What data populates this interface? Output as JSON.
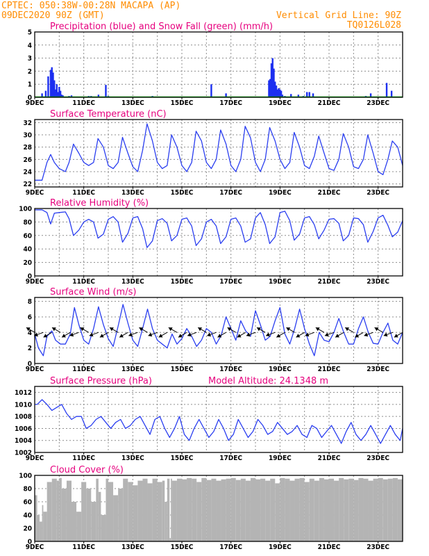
{
  "header": {
    "line1": "CPTEC:  050:38W-00:28N  MACAPA (AP)",
    "line2": "09DEC2020 90Z (GMT)",
    "grid_line": "Vertical Grid Line: 90Z",
    "code": "TQ0126L028"
  },
  "colors": {
    "header": "#ff8c00",
    "title": "#e6007e",
    "line": "#2a3ef0",
    "precip": "#1c2ff0",
    "snow": "#00b000",
    "cloud": "#b4b4b4",
    "grid": "#8c8c8c"
  },
  "chart_data": [
    {
      "type": "bar",
      "title": "Precipitation (blue) and Snow Fall (green) (mm/h)",
      "x_range_days": [
        9,
        24
      ],
      "x_tick_labels": [
        "9DEC",
        "11DEC",
        "13DEC",
        "15DEC",
        "17DEC",
        "19DEC",
        "21DEC",
        "23DEC"
      ],
      "ylim": [
        0,
        5
      ],
      "y_ticks": [
        0,
        1,
        2,
        3,
        4,
        5
      ],
      "series": [
        {
          "name": "Precipitation",
          "x": [
            9.3,
            9.45,
            9.55,
            9.65,
            9.7,
            9.75,
            9.8,
            9.85,
            9.9,
            9.95,
            10.0,
            10.05,
            10.1,
            10.15,
            10.4,
            10.5,
            11.2,
            11.3,
            11.6,
            11.9,
            12.0,
            12.8,
            13.8,
            16.2,
            16.8,
            18.55,
            18.6,
            18.65,
            18.7,
            18.75,
            18.8,
            18.85,
            18.9,
            18.95,
            19.0,
            19.05,
            19.1,
            19.2,
            19.45,
            19.75,
            19.95,
            20.1,
            20.2,
            20.35,
            22.5,
            22.7,
            23.35,
            23.55
          ],
          "values": [
            0.3,
            0.5,
            1.6,
            2.1,
            2.3,
            1.9,
            1.3,
            0.6,
            1.0,
            0.4,
            0.8,
            0.5,
            0.2,
            0.15,
            0.1,
            0.15,
            0.1,
            0.1,
            0.2,
            0.95,
            0.1,
            0.05,
            0.1,
            1.0,
            0.3,
            1.3,
            1.4,
            2.6,
            3.0,
            2.2,
            1.2,
            0.9,
            0.6,
            0.7,
            0.6,
            0.5,
            0.2,
            0.1,
            0.25,
            0.2,
            0.1,
            0.4,
            0.4,
            0.3,
            0.1,
            0.3,
            1.1,
            0.5
          ]
        },
        {
          "name": "Snow Fall",
          "x": [
            9.0,
            24.0
          ],
          "values": [
            0,
            0
          ]
        }
      ]
    },
    {
      "type": "line",
      "title": "Surface Temperature (nC)",
      "x_range_days": [
        9,
        24
      ],
      "x_tick_labels": [
        "9DEC",
        "11DEC",
        "13DEC",
        "15DEC",
        "17DEC",
        "19DEC",
        "21DEC",
        "23DEC"
      ],
      "ylim": [
        21.5,
        32.5
      ],
      "y_ticks": [
        22,
        24,
        26,
        28,
        30,
        32
      ],
      "x": [
        9.0,
        9.3,
        9.5,
        9.65,
        9.8,
        10.0,
        10.25,
        10.4,
        10.58,
        10.8,
        11.0,
        11.2,
        11.4,
        11.58,
        11.8,
        12.0,
        12.2,
        12.4,
        12.58,
        12.8,
        13.0,
        13.2,
        13.4,
        13.58,
        13.8,
        14.0,
        14.2,
        14.4,
        14.58,
        14.8,
        15.0,
        15.2,
        15.4,
        15.58,
        15.8,
        16.0,
        16.2,
        16.4,
        16.58,
        16.8,
        17.0,
        17.2,
        17.4,
        17.58,
        17.8,
        18.0,
        18.2,
        18.4,
        18.58,
        18.8,
        19.0,
        19.2,
        19.4,
        19.58,
        19.8,
        20.0,
        20.2,
        20.4,
        20.58,
        20.8,
        21.0,
        21.2,
        21.4,
        21.58,
        21.8,
        22.0,
        22.2,
        22.4,
        22.58,
        22.8,
        23.0,
        23.2,
        23.4,
        23.58,
        23.8,
        24.0
      ],
      "y": [
        22.6,
        22.6,
        25.5,
        26.8,
        25.5,
        24.5,
        24.0,
        25.5,
        28.5,
        27.0,
        25.5,
        25.0,
        25.5,
        29.4,
        28.0,
        25.0,
        24.5,
        25.5,
        29.6,
        27.0,
        24.8,
        24.0,
        27.5,
        31.8,
        29.0,
        25.5,
        24.5,
        25.0,
        30.0,
        28.0,
        25.0,
        24.0,
        25.5,
        30.6,
        29.0,
        25.5,
        24.5,
        26.0,
        30.8,
        28.5,
        25.0,
        24.0,
        26.0,
        31.4,
        29.5,
        25.5,
        24.0,
        26.0,
        31.2,
        29.0,
        26.0,
        24.5,
        25.5,
        30.4,
        28.0,
        25.0,
        24.5,
        26.5,
        29.8,
        27.0,
        24.5,
        24.2,
        26.0,
        30.2,
        28.0,
        24.8,
        24.5,
        26.0,
        30.0,
        27.0,
        24.0,
        23.5,
        26.0,
        29.0,
        28.0,
        25.0
      ]
    },
    {
      "type": "line",
      "title": "Relative Humidity (%)",
      "x_range_days": [
        9,
        24
      ],
      "x_tick_labels": [
        "9DEC",
        "11DEC",
        "13DEC",
        "15DEC",
        "17DEC",
        "19DEC",
        "21DEC",
        "23DEC"
      ],
      "ylim": [
        0,
        100
      ],
      "y_ticks": [
        0,
        20,
        40,
        60,
        80,
        100
      ],
      "x": [
        9.0,
        9.3,
        9.5,
        9.65,
        9.8,
        10.0,
        10.25,
        10.4,
        10.58,
        10.8,
        11.0,
        11.2,
        11.4,
        11.58,
        11.8,
        12.0,
        12.2,
        12.4,
        12.58,
        12.8,
        13.0,
        13.2,
        13.4,
        13.58,
        13.8,
        14.0,
        14.2,
        14.4,
        14.58,
        14.8,
        15.0,
        15.2,
        15.4,
        15.58,
        15.8,
        16.0,
        16.2,
        16.4,
        16.58,
        16.8,
        17.0,
        17.2,
        17.4,
        17.58,
        17.8,
        18.0,
        18.2,
        18.4,
        18.58,
        18.8,
        19.0,
        19.2,
        19.4,
        19.58,
        19.8,
        20.0,
        20.2,
        20.4,
        20.58,
        20.8,
        21.0,
        21.2,
        21.4,
        21.58,
        21.8,
        22.0,
        22.2,
        22.4,
        22.58,
        22.8,
        23.0,
        23.2,
        23.4,
        23.58,
        23.8,
        24.0
      ],
      "y": [
        98,
        98,
        94,
        77,
        93,
        94,
        95,
        85,
        60,
        68,
        80,
        84,
        80,
        56,
        62,
        84,
        88,
        80,
        50,
        63,
        86,
        88,
        70,
        42,
        52,
        82,
        85,
        78,
        52,
        60,
        84,
        86,
        74,
        45,
        55,
        80,
        84,
        74,
        48,
        58,
        84,
        86,
        74,
        50,
        55,
        86,
        94,
        76,
        48,
        58,
        94,
        96,
        82,
        53,
        62,
        86,
        88,
        76,
        55,
        68,
        84,
        85,
        78,
        52,
        60,
        86,
        85,
        76,
        50,
        66,
        86,
        90,
        75,
        58,
        65,
        82
      ]
    },
    {
      "type": "line",
      "title": "Surface Wind (m/s)",
      "x_range_days": [
        9,
        24
      ],
      "x_tick_labels": [
        "9DEC",
        "11DEC",
        "13DEC",
        "15DEC",
        "17DEC",
        "19DEC",
        "21DEC",
        "23DEC"
      ],
      "ylim": [
        0,
        8.5
      ],
      "y_ticks": [
        0,
        2,
        4,
        6,
        8
      ],
      "x": [
        9.0,
        9.15,
        9.35,
        9.5,
        9.7,
        9.85,
        10.05,
        10.25,
        10.45,
        10.62,
        10.8,
        11.0,
        11.2,
        11.4,
        11.6,
        11.8,
        12.0,
        12.2,
        12.4,
        12.6,
        12.8,
        13.0,
        13.2,
        13.4,
        13.6,
        13.8,
        14.0,
        14.2,
        14.4,
        14.6,
        14.8,
        15.0,
        15.2,
        15.4,
        15.6,
        15.8,
        16.0,
        16.2,
        16.4,
        16.6,
        16.8,
        17.0,
        17.2,
        17.4,
        17.6,
        17.8,
        18.0,
        18.2,
        18.4,
        18.6,
        18.8,
        19.0,
        19.2,
        19.4,
        19.6,
        19.8,
        20.0,
        20.2,
        20.4,
        20.6,
        20.8,
        21.0,
        21.2,
        21.4,
        21.6,
        21.8,
        22.0,
        22.2,
        22.4,
        22.6,
        22.8,
        23.0,
        23.2,
        23.4,
        23.6,
        23.8,
        24.0
      ],
      "y": [
        3.8,
        2.0,
        1.0,
        3.5,
        4.2,
        3.0,
        2.5,
        2.5,
        3.8,
        7.2,
        5.0,
        3.0,
        2.5,
        4.5,
        7.3,
        5.0,
        3.2,
        2.2,
        4.8,
        7.6,
        5.2,
        3.0,
        2.2,
        4.5,
        7.0,
        4.5,
        3.0,
        2.5,
        2.0,
        3.8,
        2.5,
        3.2,
        4.5,
        3.5,
        2.2,
        3.0,
        4.5,
        4.0,
        2.5,
        3.6,
        6.0,
        4.5,
        3.0,
        5.5,
        4.2,
        3.5,
        6.8,
        5.0,
        3.0,
        3.5,
        5.5,
        7.2,
        3.8,
        2.5,
        4.5,
        7.0,
        4.5,
        2.5,
        1.0,
        4.0,
        3.0,
        2.8,
        4.0,
        5.8,
        4.0,
        2.5,
        2.5,
        4.5,
        6.0,
        4.0,
        2.6,
        2.5,
        4.0,
        5.2,
        3.0,
        2.5,
        4.0
      ],
      "arrows_x": [
        9.0,
        9.15,
        9.35,
        9.5,
        9.7,
        9.85,
        10.05,
        10.25,
        10.45,
        10.62,
        10.8,
        11.0,
        11.2,
        11.4,
        11.6,
        11.8,
        12.0,
        12.2,
        12.4,
        12.6,
        12.8,
        13.0,
        13.2,
        13.4,
        13.6,
        13.8,
        14.0,
        14.2,
        14.4,
        14.6,
        14.8,
        15.0,
        15.2,
        15.4,
        15.6,
        15.8,
        16.0,
        16.2,
        16.4,
        16.6,
        16.8,
        17.0,
        17.2,
        17.4,
        17.6,
        17.8,
        18.0,
        18.2,
        18.4,
        18.6,
        18.8,
        19.0,
        19.2,
        19.4,
        19.6,
        19.8,
        20.0,
        20.2,
        20.4,
        20.6,
        20.8,
        21.0,
        21.2,
        21.4,
        21.6,
        21.8,
        22.0,
        22.2,
        22.4,
        22.6,
        22.8,
        23.0,
        23.2,
        23.4,
        23.6,
        23.8,
        24.0
      ]
    },
    {
      "type": "line",
      "title": "Surface Pressure (hPa)",
      "annotation": "Model Altitude: 24.1348 m",
      "x_range_days": [
        9,
        24
      ],
      "x_tick_labels": [
        "9DEC",
        "11DEC",
        "13DEC",
        "15DEC",
        "17DEC",
        "19DEC",
        "21DEC",
        "23DEC"
      ],
      "ylim": [
        1002,
        1013
      ],
      "y_ticks": [
        1002,
        1004,
        1006,
        1008,
        1010,
        1012
      ],
      "x": [
        9.0,
        9.1,
        9.3,
        9.5,
        9.7,
        9.9,
        10.1,
        10.3,
        10.5,
        10.7,
        10.9,
        11.1,
        11.3,
        11.5,
        11.7,
        11.9,
        12.1,
        12.3,
        12.5,
        12.7,
        12.9,
        13.1,
        13.3,
        13.5,
        13.7,
        13.9,
        14.1,
        14.3,
        14.5,
        14.7,
        14.9,
        15.1,
        15.3,
        15.5,
        15.7,
        15.9,
        16.1,
        16.3,
        16.5,
        16.7,
        16.9,
        17.1,
        17.3,
        17.5,
        17.7,
        17.9,
        18.1,
        18.3,
        18.5,
        18.7,
        18.9,
        19.1,
        19.3,
        19.5,
        19.7,
        19.9,
        20.1,
        20.3,
        20.5,
        20.7,
        20.9,
        21.1,
        21.3,
        21.5,
        21.7,
        21.9,
        22.1,
        22.3,
        22.5,
        22.7,
        22.9,
        23.1,
        23.3,
        23.5,
        23.7,
        23.9,
        24.0
      ],
      "y": [
        1010.0,
        1010.0,
        1010.8,
        1010.0,
        1009.0,
        1009.5,
        1010.0,
        1008.5,
        1007.5,
        1008.0,
        1008.0,
        1006.0,
        1006.5,
        1007.5,
        1008.0,
        1007.0,
        1006.0,
        1007.0,
        1007.5,
        1006.0,
        1006.5,
        1007.5,
        1008.0,
        1006.5,
        1005.0,
        1007.5,
        1008.0,
        1006.0,
        1004.5,
        1006.0,
        1008.0,
        1005.0,
        1004.0,
        1006.0,
        1007.5,
        1006.0,
        1004.5,
        1005.5,
        1007.5,
        1006.0,
        1004.0,
        1005.0,
        1007.5,
        1006.0,
        1004.5,
        1005.5,
        1007.5,
        1006.5,
        1005.0,
        1005.5,
        1007.0,
        1006.0,
        1005.0,
        1005.5,
        1006.5,
        1005.0,
        1004.5,
        1006.5,
        1006.0,
        1004.5,
        1005.5,
        1006.5,
        1005.0,
        1003.5,
        1005.5,
        1007.0,
        1005.0,
        1004.0,
        1005.0,
        1006.5,
        1005.0,
        1003.5,
        1005.0,
        1006.5,
        1005.0,
        1004.0,
        1006.0
      ]
    },
    {
      "type": "area",
      "title": "Cloud Cover (%)",
      "x_range_days": [
        9,
        24
      ],
      "x_tick_labels": [
        "9DEC",
        "11DEC",
        "13DEC",
        "15DEC",
        "17DEC",
        "19DEC",
        "21DEC",
        "23DEC"
      ],
      "ylim": [
        0,
        100
      ],
      "y_ticks": [
        0,
        20,
        40,
        60,
        80,
        100
      ],
      "x": [
        9.0,
        9.1,
        9.2,
        9.3,
        9.35,
        9.5,
        9.7,
        9.9,
        10.0,
        10.1,
        10.3,
        10.5,
        10.7,
        10.9,
        11.1,
        11.3,
        11.5,
        11.6,
        11.7,
        11.9,
        12.0,
        12.2,
        12.4,
        12.6,
        12.8,
        13.0,
        13.2,
        13.4,
        13.6,
        13.8,
        14.0,
        14.2,
        14.3,
        14.4,
        14.5,
        14.55,
        14.6,
        14.8,
        15.0,
        15.2,
        15.4,
        15.6,
        15.8,
        16.0,
        16.2,
        16.4,
        16.6,
        16.8,
        17.0,
        17.2,
        17.4,
        17.6,
        17.8,
        18.0,
        18.2,
        18.4,
        18.6,
        18.8,
        19.0,
        19.2,
        19.4,
        19.6,
        19.8,
        20.0,
        20.2,
        20.4,
        20.6,
        20.8,
        21.0,
        21.2,
        21.4,
        21.6,
        21.8,
        22.0,
        22.2,
        22.4,
        22.6,
        22.8,
        23.0,
        23.2,
        23.4,
        23.6,
        23.8,
        24.0
      ],
      "values": [
        70,
        40,
        30,
        55,
        45,
        90,
        95,
        92,
        96,
        80,
        92,
        60,
        45,
        90,
        80,
        60,
        95,
        75,
        40,
        95,
        90,
        70,
        80,
        95,
        90,
        85,
        92,
        95,
        88,
        95,
        90,
        92,
        60,
        95,
        5,
        95,
        92,
        95,
        94,
        96,
        95,
        90,
        96,
        93,
        95,
        92,
        94,
        95,
        96,
        93,
        95,
        92,
        96,
        94,
        95,
        92,
        95,
        88,
        96,
        95,
        92,
        95,
        96,
        90,
        95,
        92,
        96,
        94,
        95,
        92,
        96,
        94,
        95,
        93,
        96,
        95,
        92,
        95,
        96,
        94,
        95,
        96,
        94,
        95
      ]
    }
  ]
}
